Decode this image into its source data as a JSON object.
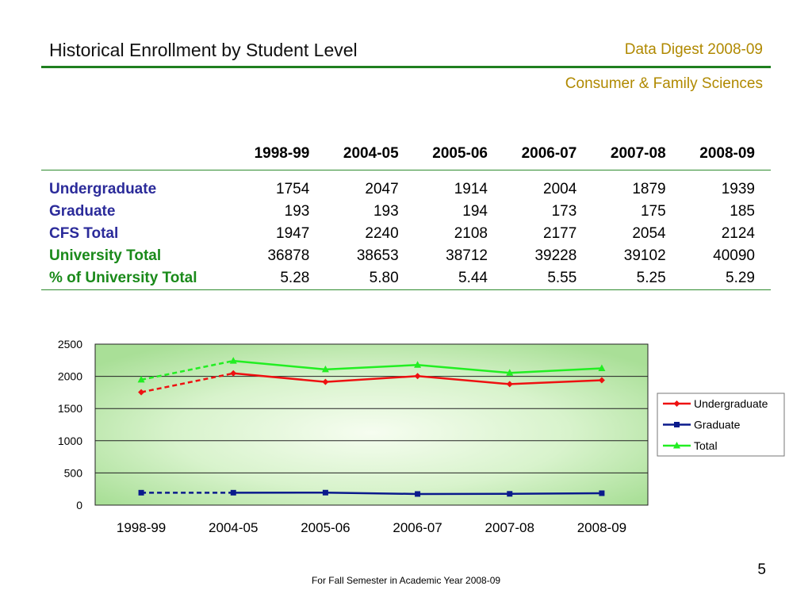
{
  "header": {
    "title": "Historical Enrollment by Student Level",
    "digest": "Data Digest 2008-09",
    "department": "Consumer & Family Sciences"
  },
  "table": {
    "columns": [
      "1998-99",
      "2004-05",
      "2005-06",
      "2006-07",
      "2007-08",
      "2008-09"
    ],
    "rows": [
      {
        "label": "Undergraduate",
        "color": "#2b2b9a",
        "values": [
          "1754",
          "2047",
          "1914",
          "2004",
          "1879",
          "1939"
        ]
      },
      {
        "label": "Graduate",
        "color": "#2b2b9a",
        "values": [
          "193",
          "193",
          "194",
          "173",
          "175",
          "185"
        ]
      },
      {
        "label": "CFS Total",
        "color": "#2b2b9a",
        "values": [
          "1947",
          "2240",
          "2108",
          "2177",
          "2054",
          "2124"
        ]
      },
      {
        "label": "University Total",
        "color": "#1a8a1a",
        "values": [
          "36878",
          "38653",
          "38712",
          "39228",
          "39102",
          "40090"
        ]
      },
      {
        "label": "% of University Total",
        "color": "#1a8a1a",
        "values": [
          "5.28",
          "5.80",
          "5.44",
          "5.55",
          "5.25",
          "5.29"
        ]
      }
    ]
  },
  "chart_data": {
    "type": "line",
    "categories": [
      "1998-99",
      "2004-05",
      "2005-06",
      "2006-07",
      "2007-08",
      "2008-09"
    ],
    "series": [
      {
        "name": "Undergraduate",
        "values": [
          1754,
          2047,
          1914,
          2004,
          1879,
          1939
        ],
        "color": "#ee1111",
        "marker": "diamond"
      },
      {
        "name": "Graduate",
        "values": [
          193,
          193,
          194,
          173,
          175,
          185
        ],
        "color": "#0a1a8c",
        "marker": "square"
      },
      {
        "name": "Total",
        "values": [
          1947,
          2240,
          2108,
          2177,
          2054,
          2124
        ],
        "color": "#22ee22",
        "marker": "triangle"
      }
    ],
    "first_segment_style": "dashed",
    "yticks": [
      0,
      500,
      1000,
      1500,
      2000,
      2500
    ],
    "ylim": [
      0,
      2500
    ],
    "grid": true,
    "legend": "right",
    "background": "radial green gradient"
  },
  "footer": {
    "note": "For Fall Semester in Academic Year 2008-09",
    "page_number": "5"
  }
}
